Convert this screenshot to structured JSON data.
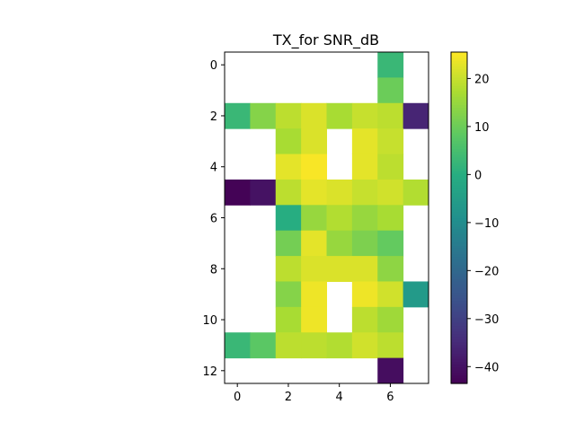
{
  "chart_data": {
    "type": "heatmap",
    "title": "TX_for SNR_dB",
    "xlabel": "",
    "ylabel": "",
    "x_ticks": [
      "0",
      "2",
      "4",
      "6"
    ],
    "y_ticks": [
      "0",
      "2",
      "4",
      "6",
      "8",
      "10",
      "12"
    ],
    "n_rows": 13,
    "n_cols": 8,
    "colormap": "viridis",
    "value_range": [
      -43.5,
      25.5
    ],
    "colorbar_ticks": [
      "20",
      "10",
      "0",
      "−10",
      "−20",
      "−30",
      "−40"
    ],
    "colorbar_tick_values": [
      20,
      10,
      0,
      -10,
      -20,
      -30,
      -40
    ],
    "missing_color": "#ffffff",
    "values": [
      [
        null,
        null,
        null,
        null,
        null,
        null,
        3,
        null
      ],
      [
        null,
        null,
        null,
        null,
        null,
        null,
        10,
        null
      ],
      [
        3,
        13,
        19,
        22,
        17,
        20,
        19,
        -36
      ],
      [
        null,
        null,
        17,
        22,
        null,
        23,
        20,
        null
      ],
      [
        null,
        null,
        23,
        25,
        null,
        23,
        19,
        null
      ],
      [
        -43,
        -40,
        19,
        23,
        22,
        20,
        21,
        18
      ],
      [
        null,
        null,
        0,
        15,
        18,
        15,
        17,
        null
      ],
      [
        null,
        null,
        11,
        23,
        15,
        12,
        9,
        null
      ],
      [
        null,
        null,
        19,
        22,
        22,
        22,
        14,
        null
      ],
      [
        null,
        null,
        13,
        24,
        null,
        24,
        21,
        -6
      ],
      [
        null,
        null,
        17,
        24,
        null,
        19,
        16,
        null
      ],
      [
        3,
        8,
        19,
        19,
        18,
        21,
        19,
        null
      ],
      [
        null,
        null,
        null,
        null,
        null,
        null,
        -41,
        null
      ]
    ]
  }
}
